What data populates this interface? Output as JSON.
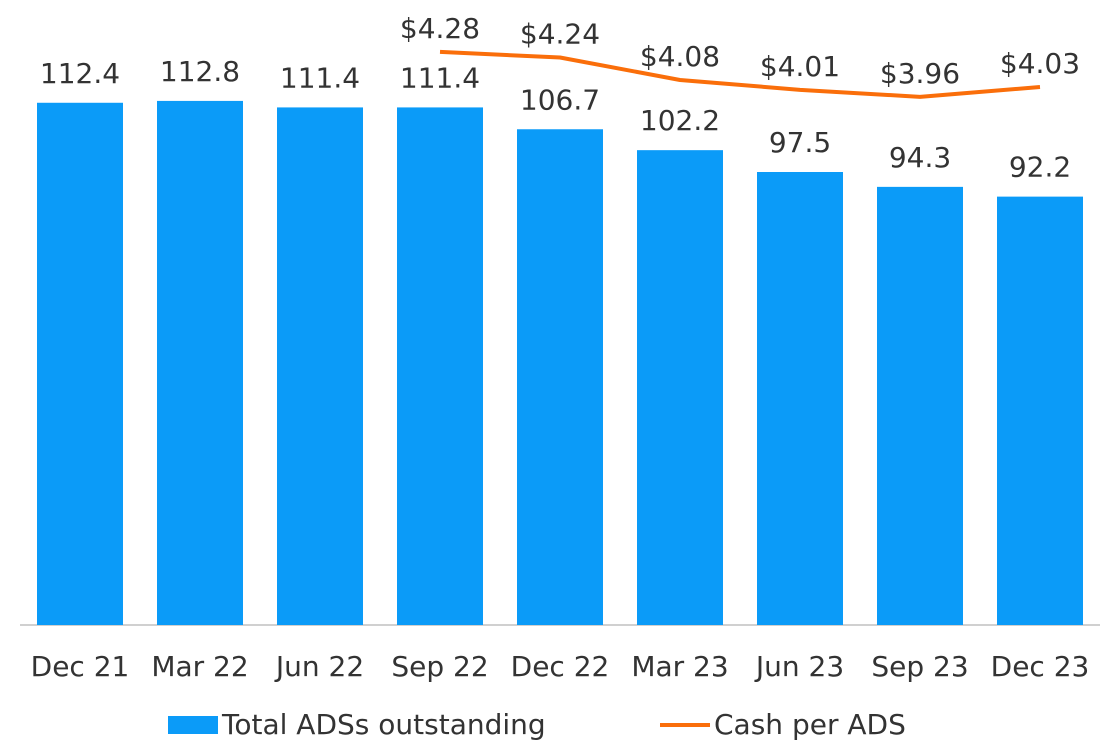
{
  "chart_data": {
    "type": "bar",
    "categories": [
      "Dec 21",
      "Mar 22",
      "Jun 22",
      "Sep 22",
      "Dec 22",
      "Mar 23",
      "Jun 23",
      "Sep 23",
      "Dec 23"
    ],
    "series": [
      {
        "name": "Total ADSs outstanding",
        "type": "bar",
        "color": "#0b9bf8",
        "values": [
          112.4,
          112.8,
          111.4,
          111.4,
          106.7,
          102.2,
          97.5,
          94.3,
          92.2
        ]
      },
      {
        "name": "Cash per ADS",
        "type": "line",
        "axis": "y2",
        "color": "#fa6e0a",
        "values": [
          null,
          null,
          null,
          4.28,
          4.24,
          4.08,
          4.01,
          3.96,
          4.03
        ],
        "value_labels": [
          null,
          null,
          null,
          "$4.28",
          "$4.24",
          "$4.08",
          "$4.01",
          "$3.96",
          "$4.03"
        ]
      }
    ],
    "ylim": [
      0,
      130
    ],
    "y2lim": [
      0.2,
      4.5
    ],
    "legend": "bottom"
  }
}
